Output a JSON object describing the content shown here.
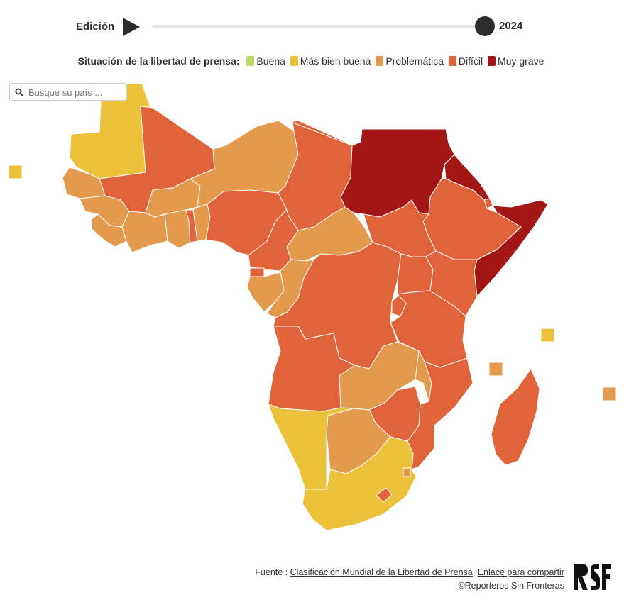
{
  "timeline": {
    "label": "Edición",
    "year": "2024",
    "position": 1.0
  },
  "legend": {
    "title": "Situación de la libertad de prensa:",
    "items": [
      {
        "key": "buena",
        "label": "Buena",
        "color": "#b8dc64"
      },
      {
        "key": "mas_bien_buena",
        "label": "Más bien buena",
        "color": "#ecc23b"
      },
      {
        "key": "problematica",
        "label": "Problemática",
        "color": "#e49a4d"
      },
      {
        "key": "dificil",
        "label": "Difícil",
        "color": "#e0633a"
      },
      {
        "key": "muy_grave",
        "label": "Muy grave",
        "color": "#a31616"
      }
    ]
  },
  "search": {
    "placeholder": "Busque su país ..."
  },
  "footer": {
    "source_prefix": "Fuente :",
    "source_link": "Clasificación Mundial de la Libertad de Prensa",
    "separator": ",",
    "share_link": "Enlace para compartir",
    "copyright": "©Reporteros Sin Fronteras",
    "logo_text": "RSF"
  },
  "icons": {
    "play": "play-icon",
    "search": "search-icon",
    "logo": "rsf-logo"
  }
}
